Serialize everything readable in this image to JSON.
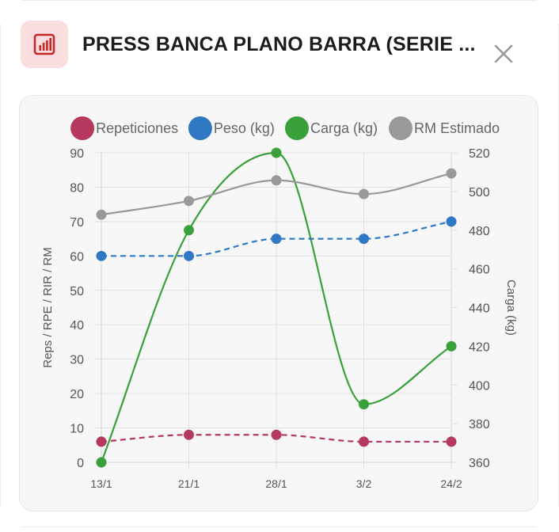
{
  "modal": {
    "title": "PRESS BANCA PLANO BARRA (SERIE ...",
    "icon": "bar-chart-icon",
    "close_icon": "close-icon",
    "accent_color": "#c62828",
    "icon_bg_color": "#f8dede"
  },
  "chart_data": {
    "type": "line",
    "categories": [
      "13/1",
      "21/1",
      "28/1",
      "3/2",
      "24/2"
    ],
    "series": [
      {
        "name": "Repeticiones",
        "axis": "left",
        "color": "#b5395c",
        "dashed": true,
        "smooth": true,
        "values": [
          6,
          8,
          8,
          6,
          6
        ]
      },
      {
        "name": "Peso (kg)",
        "axis": "left",
        "color": "#2f78c4",
        "dashed": true,
        "smooth": true,
        "values": [
          60,
          60,
          65,
          65,
          70
        ]
      },
      {
        "name": "Carga (kg)",
        "axis": "right",
        "color": "#3aa13a",
        "dashed": false,
        "smooth": true,
        "values": [
          360,
          480,
          520,
          390,
          420
        ]
      },
      {
        "name": "RM Estimado",
        "axis": "left",
        "color": "#999999",
        "dashed": false,
        "smooth": true,
        "values": [
          72,
          76,
          82,
          78,
          84
        ]
      }
    ],
    "y_left": {
      "label": "Reps / RPE / RIR / RM",
      "min": 0,
      "max": 90,
      "ticks": [
        0,
        10,
        20,
        30,
        40,
        50,
        60,
        70,
        80,
        90
      ]
    },
    "y_right": {
      "label": "Carga (kg)",
      "min": 360,
      "max": 520,
      "ticks": [
        360,
        380,
        400,
        420,
        440,
        460,
        480,
        500,
        520
      ]
    },
    "legend_position": "top",
    "grid": true
  }
}
